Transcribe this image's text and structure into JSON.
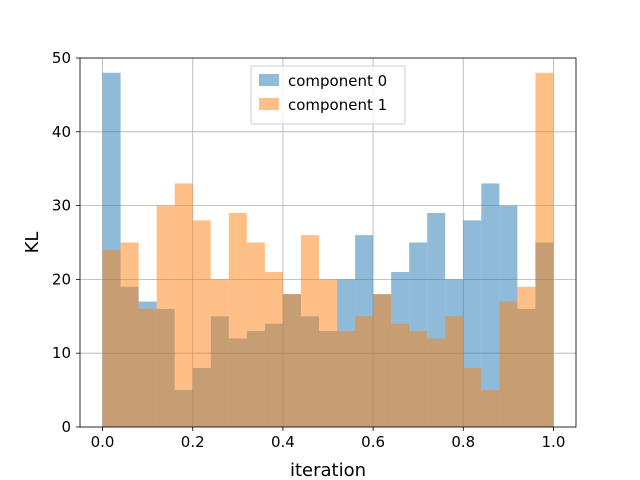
{
  "chart_data": {
    "type": "bar",
    "subtype": "overlaid-histogram",
    "title": "",
    "xlabel": "iteration",
    "ylabel": "KL",
    "xlim": [
      -0.05,
      1.05
    ],
    "ylim": [
      0,
      50
    ],
    "x_ticks": [
      "0.0",
      "0.2",
      "0.4",
      "0.6",
      "0.8",
      "1.0"
    ],
    "y_ticks": [
      "0",
      "10",
      "20",
      "30",
      "40",
      "50"
    ],
    "grid": true,
    "legend_position": "upper center",
    "bin_edges_start": 0.0,
    "bin_width": 0.04,
    "series": [
      {
        "name": "component 0",
        "color": "#1f77b4",
        "opacity": 0.5,
        "values": [
          48,
          19,
          17,
          16,
          5,
          8,
          15,
          12,
          13,
          14,
          18,
          15,
          13,
          20,
          26,
          18,
          21,
          25,
          29,
          20,
          28,
          33,
          30,
          16,
          25
        ]
      },
      {
        "name": "component 1",
        "color": "#ff7f0e",
        "opacity": 0.5,
        "values": [
          24,
          25,
          16,
          30,
          33,
          28,
          20,
          29,
          25,
          21,
          18,
          26,
          20,
          13,
          15,
          18,
          14,
          13,
          12,
          15,
          8,
          5,
          17,
          19,
          48
        ]
      }
    ]
  }
}
